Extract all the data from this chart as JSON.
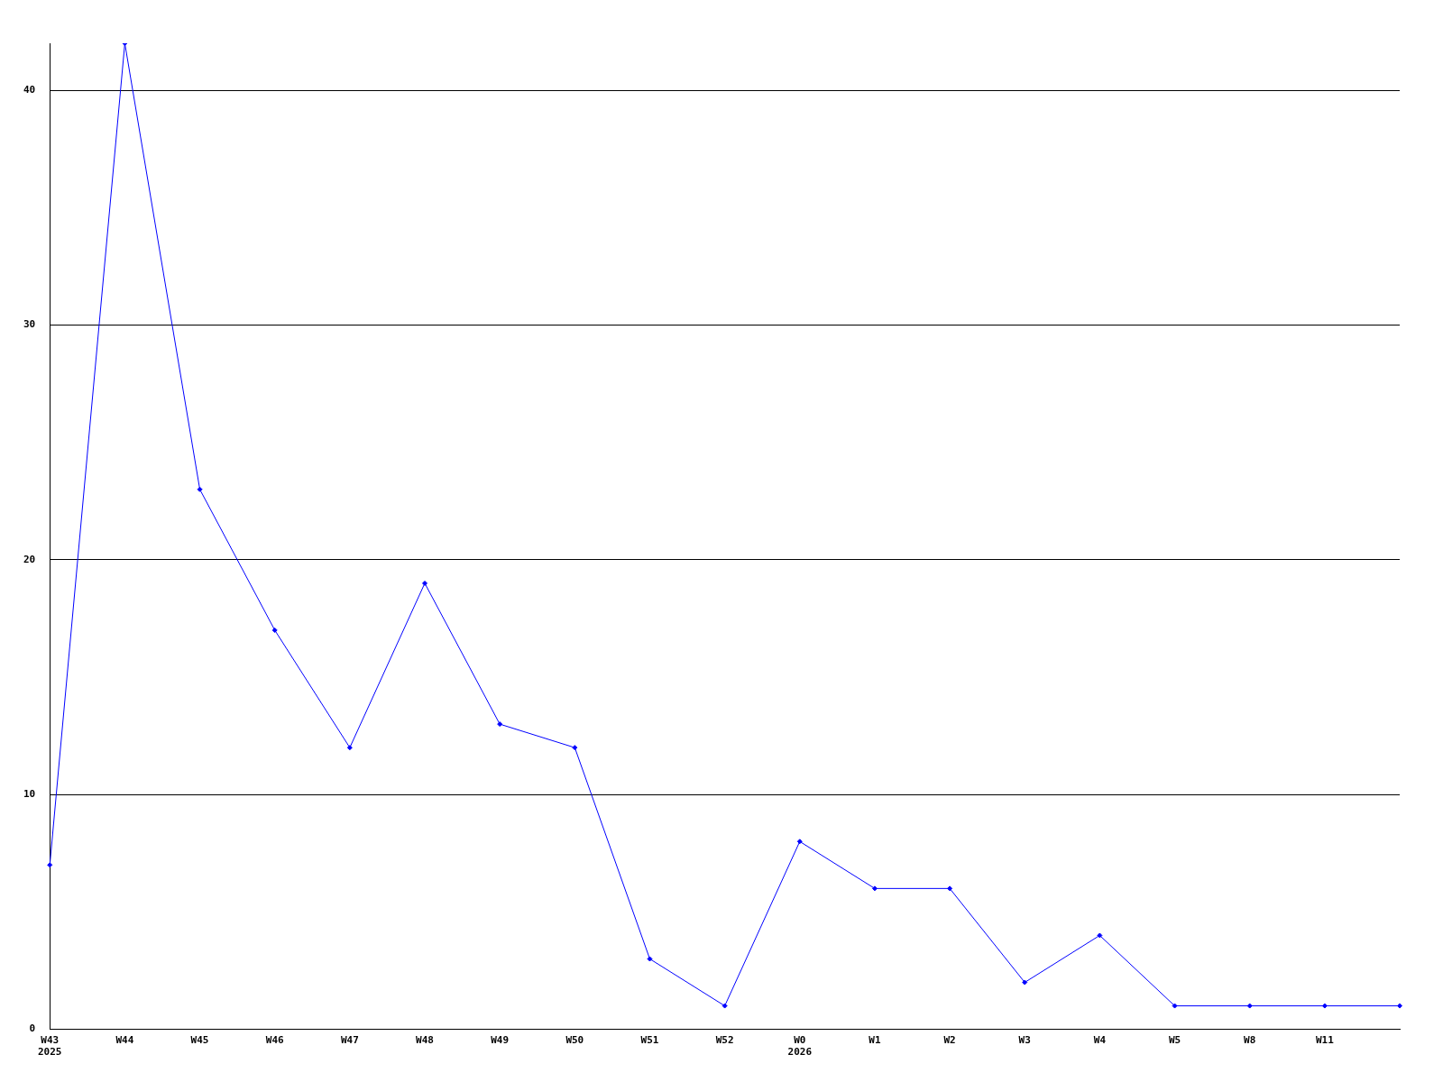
{
  "chart_data": {
    "type": "line",
    "categories": [
      "W43\n2025",
      "W44",
      "W45",
      "W46",
      "W47",
      "W48",
      "W49",
      "W50",
      "W51",
      "W52",
      "W0\n2026",
      "W1",
      "W2",
      "W3",
      "W4",
      "W5",
      "W8",
      "W11",
      null
    ],
    "series": [
      {
        "color": "#0000ff",
        "values": [
          7,
          42,
          23,
          17,
          12,
          19,
          13,
          12,
          3,
          1,
          8,
          6,
          6,
          2,
          4,
          1,
          1,
          1,
          1
        ]
      }
    ],
    "ylim": [
      0,
      42
    ],
    "yticks": [
      0,
      10,
      20,
      30,
      40
    ],
    "grid": "y",
    "legend": false,
    "marker": "diamond",
    "line_style": "solid"
  }
}
